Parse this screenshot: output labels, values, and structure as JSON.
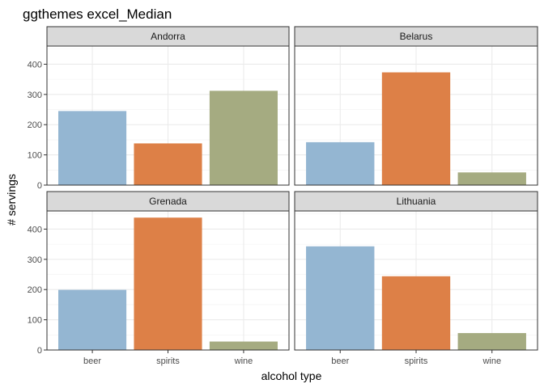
{
  "chart_data": {
    "type": "bar",
    "title": "ggthemes excel_Median",
    "xlabel": "alcohol type",
    "ylabel": "# servings",
    "categories": [
      "beer",
      "spirits",
      "wine"
    ],
    "ylim": [
      0,
      460
    ],
    "yticks": [
      0,
      100,
      200,
      300,
      400
    ],
    "grid": true,
    "colors": {
      "beer": "#94B6D2",
      "spirits": "#DD8047",
      "wine": "#A5AB81"
    },
    "panels": [
      {
        "name": "Andorra",
        "values": [
          245,
          138,
          312
        ]
      },
      {
        "name": "Belarus",
        "values": [
          142,
          373,
          42
        ]
      },
      {
        "name": "Grenada",
        "values": [
          199,
          438,
          28
        ]
      },
      {
        "name": "Lithuania",
        "values": [
          343,
          244,
          56
        ]
      }
    ]
  }
}
